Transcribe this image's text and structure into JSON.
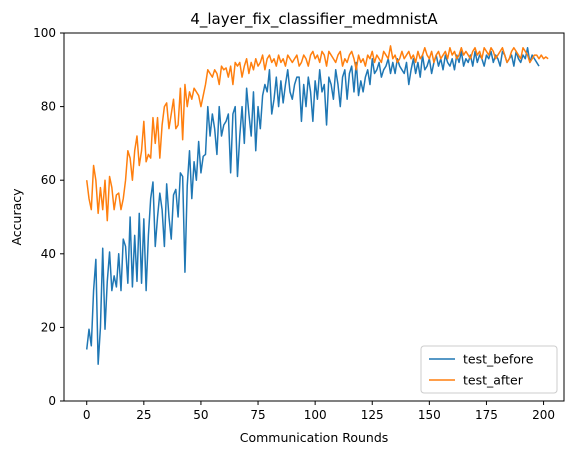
{
  "chart_data": {
    "type": "line",
    "title": "4_layer_fix_classifier_medmnistA",
    "xlabel": "Communication Rounds",
    "ylabel": "Accuracy",
    "xlim": [
      -9.95,
      208.95
    ],
    "ylim": [
      0,
      100
    ],
    "x_ticks": [
      0,
      25,
      50,
      75,
      100,
      125,
      150,
      175,
      200
    ],
    "y_ticks": [
      0,
      20,
      40,
      60,
      80,
      100
    ],
    "grid": false,
    "legend_position": "lower-right",
    "colors": {
      "test_before": "#1f77b4",
      "test_after": "#ff7f0e"
    },
    "series": [
      {
        "name": "test_before",
        "values": [
          14.0,
          19.5,
          15.0,
          30.0,
          38.5,
          10.0,
          20.0,
          41.5,
          19.5,
          32.5,
          40.5,
          30.0,
          34.0,
          31.0,
          40.0,
          30.0,
          44.0,
          42.0,
          32.0,
          50.0,
          31.0,
          45.0,
          32.5,
          51.0,
          32.0,
          49.5,
          30.0,
          45.0,
          55.0,
          59.5,
          42.0,
          50.0,
          56.5,
          52.0,
          42.0,
          59.0,
          50.0,
          44.0,
          56.0,
          57.5,
          50.0,
          62.0,
          61.0,
          35.0,
          58.5,
          68.0,
          55.0,
          65.0,
          60.0,
          70.5,
          62.0,
          66.5,
          67.0,
          80.0,
          72.0,
          78.0,
          74.0,
          67.0,
          80.0,
          72.0,
          75.0,
          76.0,
          78.0,
          62.0,
          78.0,
          80.0,
          61.0,
          72.0,
          80.0,
          70.0,
          85.0,
          78.0,
          72.0,
          84.0,
          68.0,
          80.0,
          74.0,
          83.0,
          86.0,
          84.0,
          90.0,
          78.0,
          82.0,
          88.0,
          80.0,
          87.0,
          81.0,
          86.0,
          90.0,
          84.0,
          82.0,
          86.0,
          88.0,
          88.0,
          76.0,
          86.0,
          80.0,
          88.0,
          84.0,
          76.0,
          87.0,
          82.0,
          90.0,
          84.0,
          86.0,
          75.0,
          88.0,
          86.0,
          82.0,
          90.0,
          86.0,
          80.0,
          88.0,
          90.0,
          82.0,
          89.0,
          91.0,
          84.0,
          92.0,
          83.0,
          87.0,
          84.0,
          88.0,
          90.0,
          86.0,
          93.0,
          89.0,
          90.0,
          92.0,
          88.0,
          90.0,
          91.0,
          93.0,
          89.0,
          92.0,
          89.0,
          93.0,
          91.0,
          90.0,
          89.0,
          92.0,
          86.0,
          90.0,
          93.0,
          89.0,
          92.0,
          88.0,
          94.0,
          90.0,
          91.0,
          93.0,
          89.0,
          92.0,
          94.0,
          91.0,
          93.0,
          90.0,
          94.0,
          92.0,
          91.0,
          93.0,
          90.0,
          94.0,
          92.0,
          95.0,
          91.0,
          93.0,
          92.0,
          94.0,
          91.0,
          95.0,
          92.0,
          94.0,
          93.0,
          91.0,
          94.0,
          93.0,
          95.0,
          92.0,
          94.0,
          93.0,
          91.0,
          95.0,
          94.0,
          92.0,
          93.0,
          94.0,
          91.0,
          95.0,
          93.0,
          92.0,
          94.0,
          93.0,
          96.0,
          92.0,
          94.0,
          93.0,
          92.0,
          91.0
        ]
      },
      {
        "name": "test_after",
        "values": [
          60.0,
          55.0,
          52.0,
          64.0,
          60.0,
          51.0,
          58.0,
          52.0,
          60.0,
          49.0,
          61.0,
          58.0,
          52.0,
          56.0,
          56.5,
          52.0,
          55.0,
          60.0,
          68.0,
          66.0,
          60.0,
          68.0,
          72.0,
          64.0,
          68.0,
          76.0,
          65.0,
          67.0,
          66.0,
          77.0,
          70.0,
          77.0,
          66.0,
          75.0,
          80.0,
          81.0,
          74.0,
          78.0,
          82.0,
          74.0,
          75.0,
          85.0,
          71.0,
          86.0,
          80.0,
          84.0,
          82.0,
          85.0,
          84.0,
          83.0,
          80.0,
          83.0,
          86.0,
          90.0,
          89.0,
          88.0,
          90.0,
          89.0,
          86.0,
          91.0,
          90.0,
          90.5,
          88.0,
          91.0,
          86.0,
          92.0,
          91.0,
          92.0,
          88.0,
          91.0,
          93.0,
          89.0,
          92.0,
          90.0,
          93.0,
          91.0,
          92.0,
          94.0,
          90.0,
          93.0,
          94.0,
          92.0,
          93.0,
          91.0,
          94.0,
          92.0,
          93.0,
          91.0,
          94.0,
          93.0,
          92.0,
          93.0,
          94.0,
          91.0,
          92.0,
          94.0,
          93.0,
          91.0,
          94.0,
          95.0,
          93.0,
          94.0,
          92.0,
          95.0,
          94.0,
          91.0,
          95.0,
          94.0,
          93.0,
          92.0,
          94.0,
          95.0,
          91.0,
          93.0,
          92.0,
          94.0,
          95.0,
          93.0,
          90.0,
          94.0,
          92.0,
          93.0,
          91.0,
          94.0,
          93.0,
          95.0,
          92.0,
          94.0,
          93.0,
          92.0,
          95.0,
          94.0,
          93.0,
          96.5,
          93.0,
          94.0,
          92.0,
          93.0,
          95.0,
          93.0,
          94.0,
          95.0,
          93.0,
          94.0,
          92.0,
          95.0,
          93.0,
          94.0,
          96.0,
          94.0,
          93.0,
          95.0,
          92.0,
          94.0,
          95.0,
          93.0,
          94.0,
          95.0,
          93.0,
          96.0,
          94.0,
          95.0,
          93.0,
          94.0,
          96.0,
          94.0,
          95.0,
          94.0,
          93.0,
          95.0,
          96.0,
          94.0,
          95.0,
          93.0,
          96.0,
          95.0,
          94.0,
          96.0,
          95.0,
          93.0,
          94.0,
          95.0,
          96.0,
          94.0,
          92.0,
          93.0,
          95.0,
          96.0,
          95.0,
          94.0,
          93.0,
          96.0,
          95.0,
          94.0,
          92.0,
          93.0,
          94.0,
          94.0,
          93.0,
          94.0,
          93.0,
          93.5,
          93.0
        ]
      }
    ]
  }
}
